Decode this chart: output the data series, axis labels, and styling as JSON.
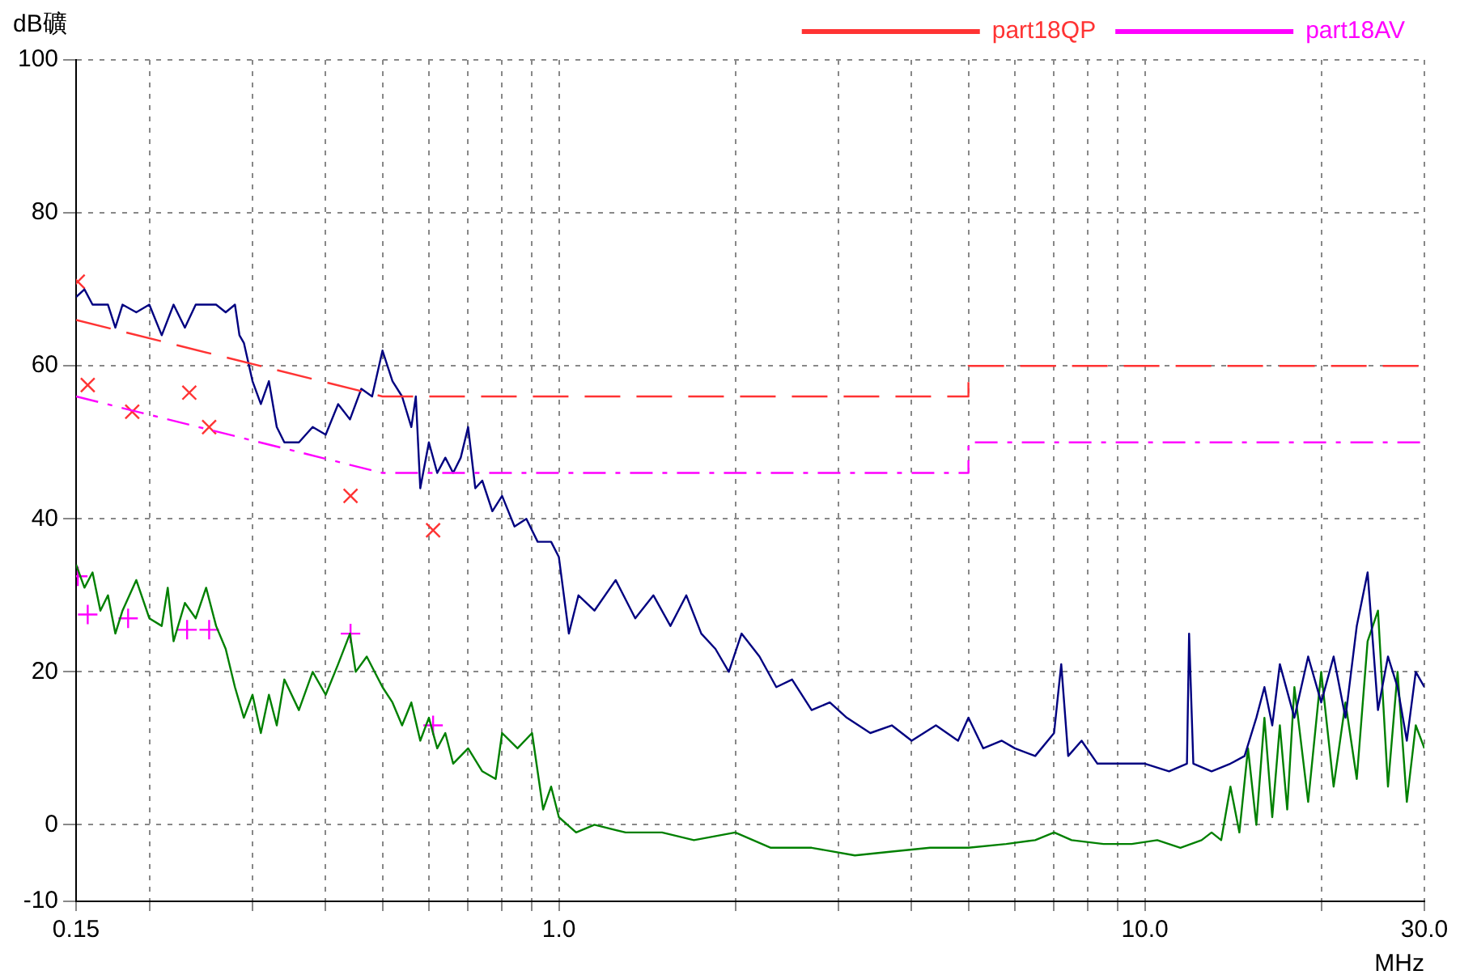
{
  "chart_data": {
    "type": "line",
    "xlabel": "MHz",
    "ylabel": "dB礦",
    "log": "x",
    "grid": true,
    "legend": "top",
    "xlim": [
      0.15,
      30
    ],
    "ylim": [
      -10,
      100
    ],
    "xticks": [
      {
        "value": 0.15,
        "label": "0.15"
      },
      {
        "value": 0.2,
        "label": null
      },
      {
        "value": 0.3,
        "label": null
      },
      {
        "value": 0.4,
        "label": null
      },
      {
        "value": 0.5,
        "label": null
      },
      {
        "value": 0.6,
        "label": null
      },
      {
        "value": 0.7,
        "label": null
      },
      {
        "value": 0.8,
        "label": null
      },
      {
        "value": 0.9,
        "label": null
      },
      {
        "value": 1,
        "label": "1.0"
      },
      {
        "value": 2,
        "label": null
      },
      {
        "value": 3,
        "label": null
      },
      {
        "value": 4,
        "label": null
      },
      {
        "value": 5,
        "label": null
      },
      {
        "value": 6,
        "label": null
      },
      {
        "value": 7,
        "label": null
      },
      {
        "value": 8,
        "label": null
      },
      {
        "value": 9,
        "label": null
      },
      {
        "value": 10,
        "label": "10.0"
      },
      {
        "value": 20,
        "label": null
      },
      {
        "value": 30,
        "label": "30.0"
      }
    ],
    "yticks": [
      -10,
      0,
      20,
      40,
      60,
      80,
      100
    ],
    "series": [
      {
        "name": "part18QP",
        "color": "#ff3333",
        "line_style": "dashed",
        "marker": "none",
        "x": [
          0.15,
          0.5,
          5,
          5,
          30
        ],
        "values": [
          66,
          56,
          56,
          60,
          60
        ]
      },
      {
        "name": "part18AV",
        "color": "#ff00ff",
        "line_style": "dashdot",
        "marker": "none",
        "x": [
          0.15,
          0.5,
          5,
          5,
          30
        ],
        "values": [
          56,
          46,
          46,
          50,
          50
        ]
      },
      {
        "color": "#000080",
        "line_style": "solid",
        "marker": "none",
        "x": [
          0.15,
          0.155,
          0.16,
          0.17,
          0.175,
          0.18,
          0.19,
          0.2,
          0.21,
          0.22,
          0.23,
          0.24,
          0.26,
          0.27,
          0.28,
          0.285,
          0.29,
          0.3,
          0.31,
          0.32,
          0.33,
          0.34,
          0.36,
          0.38,
          0.4,
          0.42,
          0.44,
          0.46,
          0.48,
          0.5,
          0.52,
          0.54,
          0.56,
          0.57,
          0.58,
          0.6,
          0.62,
          0.64,
          0.66,
          0.68,
          0.7,
          0.72,
          0.74,
          0.77,
          0.8,
          0.84,
          0.88,
          0.92,
          0.97,
          1.0,
          1.04,
          1.08,
          1.15,
          1.25,
          1.35,
          1.45,
          1.55,
          1.65,
          1.75,
          1.85,
          1.95,
          2.05,
          2.2,
          2.35,
          2.5,
          2.7,
          2.9,
          3.1,
          3.4,
          3.7,
          4.0,
          4.4,
          4.8,
          5.0,
          5.3,
          5.7,
          6.0,
          6.5,
          7.0,
          7.2,
          7.4,
          7.8,
          8.3,
          9.0,
          10.0,
          11.0,
          11.8,
          11.9,
          12.1,
          13.0,
          14.0,
          14.8,
          15.5,
          16.0,
          16.5,
          17.0,
          18.0,
          19.0,
          20.0,
          21.0,
          22.0,
          23.0,
          24.0,
          25.0,
          26.0,
          27.0,
          28.0,
          29.0,
          30.0
        ],
        "values": [
          69,
          70,
          68,
          68,
          65,
          68,
          67,
          68,
          64,
          68,
          65,
          68,
          68,
          67,
          68,
          64,
          63,
          58,
          55,
          58,
          52,
          50,
          50,
          52,
          51,
          55,
          53,
          57,
          56,
          62,
          58,
          56,
          52,
          56,
          44,
          50,
          46,
          48,
          46,
          48,
          52,
          44,
          45,
          41,
          43,
          39,
          40,
          37,
          37,
          35,
          25,
          30,
          28,
          32,
          27,
          30,
          26,
          30,
          25,
          23,
          20,
          25,
          22,
          18,
          19,
          15,
          16,
          14,
          12,
          13,
          11,
          13,
          11,
          14,
          10,
          11,
          10,
          9,
          12,
          21,
          9,
          11,
          8,
          8,
          8,
          7,
          8,
          25,
          8,
          7,
          8,
          9,
          14,
          18,
          13,
          21,
          14,
          22,
          16,
          22,
          14,
          26,
          33,
          15,
          22,
          18,
          11,
          20,
          18
        ]
      },
      {
        "color": "#008000",
        "line_style": "solid",
        "marker": "none",
        "x": [
          0.15,
          0.155,
          0.16,
          0.165,
          0.17,
          0.175,
          0.18,
          0.19,
          0.2,
          0.21,
          0.215,
          0.22,
          0.23,
          0.24,
          0.25,
          0.26,
          0.27,
          0.28,
          0.29,
          0.3,
          0.31,
          0.32,
          0.33,
          0.34,
          0.36,
          0.38,
          0.4,
          0.42,
          0.44,
          0.45,
          0.47,
          0.5,
          0.52,
          0.54,
          0.56,
          0.58,
          0.6,
          0.62,
          0.64,
          0.66,
          0.7,
          0.74,
          0.78,
          0.8,
          0.85,
          0.9,
          0.94,
          0.97,
          1.0,
          1.07,
          1.15,
          1.3,
          1.5,
          1.7,
          2.0,
          2.3,
          2.7,
          3.2,
          3.7,
          4.3,
          5.0,
          5.8,
          6.5,
          7.0,
          7.5,
          8.5,
          9.5,
          10.5,
          11.5,
          12.5,
          13.0,
          13.5,
          14.0,
          14.5,
          15.0,
          15.5,
          16.0,
          16.5,
          17.0,
          17.5,
          18.0,
          19.0,
          20.0,
          21.0,
          22.0,
          23.0,
          24.0,
          25.0,
          26.0,
          27.0,
          28.0,
          29.0,
          30.0
        ],
        "values": [
          34,
          31,
          33,
          28,
          30,
          25,
          28,
          32,
          27,
          26,
          31,
          24,
          29,
          27,
          31,
          26,
          23,
          18,
          14,
          17,
          12,
          17,
          13,
          19,
          15,
          20,
          17,
          21,
          25,
          20,
          22,
          18,
          16,
          13,
          16,
          11,
          14,
          10,
          12,
          8,
          10,
          7,
          6,
          12,
          10,
          12,
          2,
          5,
          1,
          -1,
          0,
          -1,
          -1,
          -2,
          -1,
          -3,
          -3,
          -4,
          -3.5,
          -3,
          -3,
          -2.5,
          -2,
          -1,
          -2,
          -2.5,
          -2.5,
          -2,
          -3,
          -2,
          -1,
          -2,
          5,
          -1,
          10,
          0,
          14,
          1,
          13,
          2,
          18,
          3,
          20,
          5,
          16,
          6,
          24,
          28,
          5,
          20,
          3,
          13,
          10
        ]
      },
      {
        "type": "scatter",
        "color": "#ff3333",
        "marker": "x",
        "x": [
          0.151,
          0.157,
          0.187,
          0.234,
          0.253,
          0.441,
          0.61
        ],
        "values": [
          71,
          57.5,
          54,
          56.5,
          52,
          43,
          38.5
        ]
      },
      {
        "type": "scatter",
        "color": "#ff00ff",
        "marker": "cross",
        "x": [
          0.151,
          0.157,
          0.184,
          0.232,
          0.253,
          0.441,
          0.61
        ],
        "values": [
          32.5,
          27.5,
          27,
          25.5,
          25.5,
          25,
          13
        ]
      }
    ]
  }
}
